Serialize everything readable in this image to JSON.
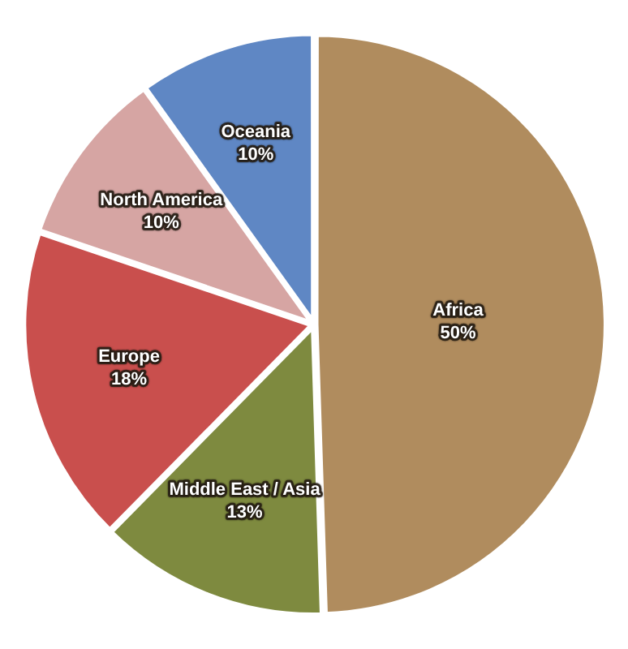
{
  "chart_data": {
    "type": "pie",
    "categories": [
      "Africa",
      "Middle East / Asia",
      "Europe",
      "North America",
      "Oceania"
    ],
    "values": [
      50,
      13,
      18,
      10,
      10
    ],
    "value_labels": [
      "50%",
      "13%",
      "18%",
      "10%",
      "10%"
    ],
    "colors": [
      "#b08c5e",
      "#7e8a3f",
      "#c94f4d",
      "#d6a5a3",
      "#5f87c4"
    ],
    "legend": false
  }
}
